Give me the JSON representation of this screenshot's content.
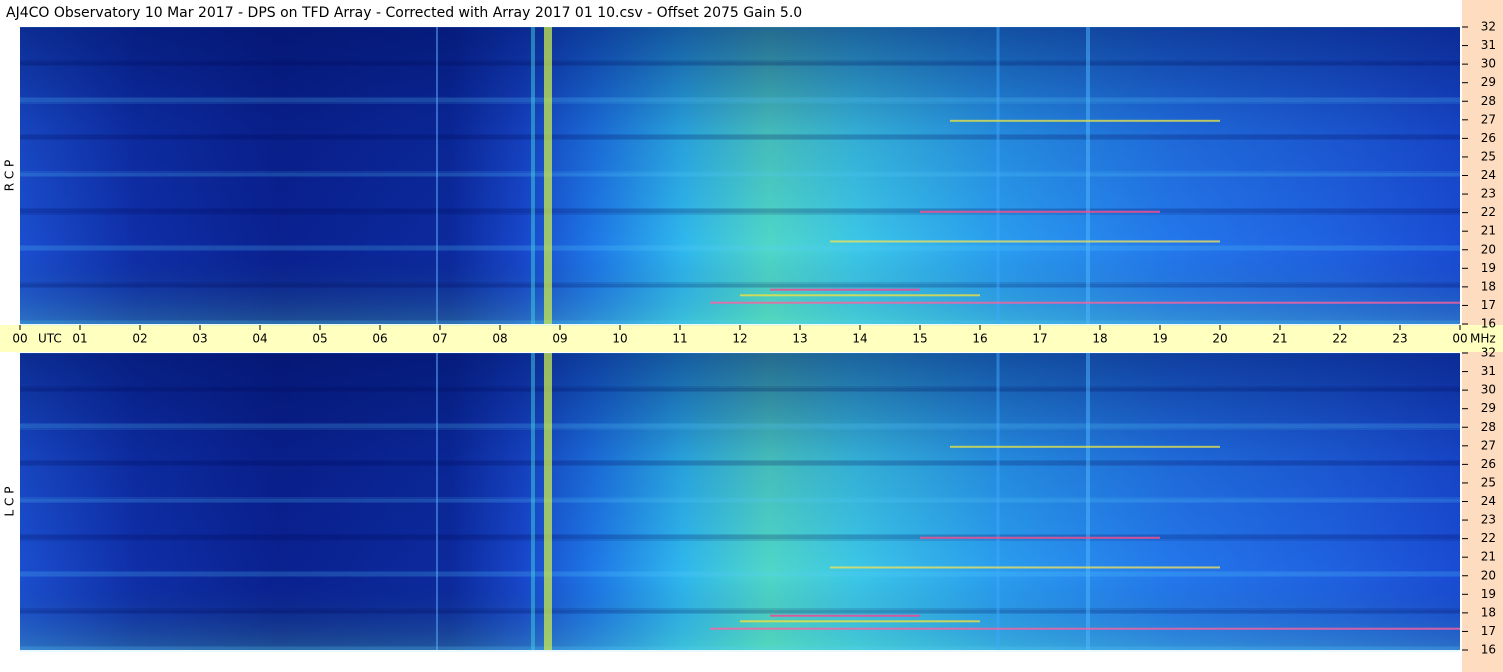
{
  "chart_data": {
    "type": "spectrogram",
    "title": "AJ4CO Observatory  10 Mar 2017  -  DPS on TFD Array  -  Corrected with Array 2017 01 10.csv  -  Offset 2075  Gain 5.0",
    "xlabel": "UTC",
    "unit": "MHz",
    "xlim": [
      0,
      24
    ],
    "xticks": [
      {
        "value": 0,
        "label": "00"
      },
      {
        "value": 1,
        "label": "01"
      },
      {
        "value": 2,
        "label": "02"
      },
      {
        "value": 3,
        "label": "03"
      },
      {
        "value": 4,
        "label": "04"
      },
      {
        "value": 5,
        "label": "05"
      },
      {
        "value": 6,
        "label": "06"
      },
      {
        "value": 7,
        "label": "07"
      },
      {
        "value": 8,
        "label": "08"
      },
      {
        "value": 9,
        "label": "09"
      },
      10,
      11,
      12,
      13,
      14,
      15,
      16,
      17,
      18,
      19,
      20,
      21,
      22,
      23,
      {
        "value": 24,
        "label": "00"
      }
    ],
    "ylim": [
      16,
      32
    ],
    "yticks": [
      16,
      17,
      18,
      19,
      20,
      21,
      22,
      23,
      24,
      25,
      26,
      27,
      28,
      29,
      30,
      31,
      32
    ],
    "panels": [
      {
        "label": "R C P"
      },
      {
        "label": "L C P"
      }
    ]
  }
}
